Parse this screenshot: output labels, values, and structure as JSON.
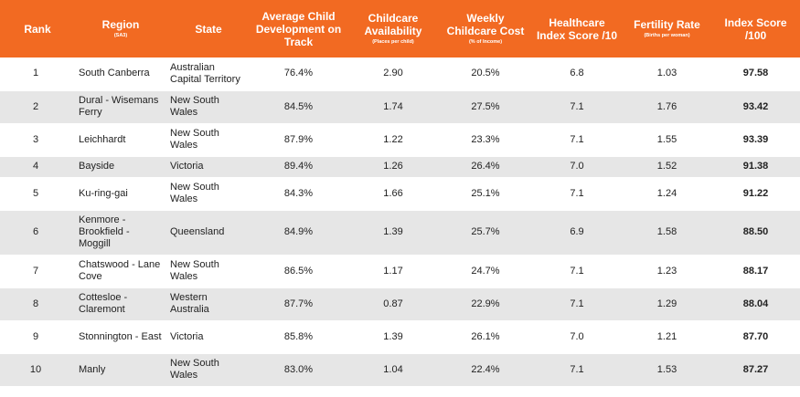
{
  "headers": {
    "rank": "Rank",
    "region": "Region",
    "region_sub": "(SA3)",
    "state": "State",
    "dev": "Average Child Development on Track",
    "avail": "Childcare Availability",
    "avail_sub": "(Places per child)",
    "cost": "Weekly Childcare Cost",
    "cost_sub": "(% of Income)",
    "health": "Healthcare Index Score /10",
    "fert": "Fertility Rate",
    "fert_sub": "(Births per woman)",
    "index": "Index Score /100"
  },
  "rows": [
    {
      "rank": "1",
      "region": "South Canberra",
      "state": "Australian Capital Territory",
      "dev": "76.4%",
      "avail": "2.90",
      "cost": "20.5%",
      "health": "6.8",
      "fert": "1.03",
      "index": "97.58"
    },
    {
      "rank": "2",
      "region": "Dural - Wisemans Ferry",
      "state": "New South Wales",
      "dev": "84.5%",
      "avail": "1.74",
      "cost": "27.5%",
      "health": "7.1",
      "fert": "1.76",
      "index": "93.42"
    },
    {
      "rank": "3",
      "region": "Leichhardt",
      "state": "New South Wales",
      "dev": "87.9%",
      "avail": "1.22",
      "cost": "23.3%",
      "health": "7.1",
      "fert": "1.55",
      "index": "93.39"
    },
    {
      "rank": "4",
      "region": "Bayside",
      "state": "Victoria",
      "dev": "89.4%",
      "avail": "1.26",
      "cost": "26.4%",
      "health": "7.0",
      "fert": "1.52",
      "index": "91.38"
    },
    {
      "rank": "5",
      "region": "Ku-ring-gai",
      "state": "New South Wales",
      "dev": "84.3%",
      "avail": "1.66",
      "cost": "25.1%",
      "health": "7.1",
      "fert": "1.24",
      "index": "91.22"
    },
    {
      "rank": "6",
      "region": "Kenmore - Brookfield - Moggill",
      "state": "Queensland",
      "dev": "84.9%",
      "avail": "1.39",
      "cost": "25.7%",
      "health": "6.9",
      "fert": "1.58",
      "index": "88.50"
    },
    {
      "rank": "7",
      "region": "Chatswood - Lane Cove",
      "state": "New South Wales",
      "dev": "86.5%",
      "avail": "1.17",
      "cost": "24.7%",
      "health": "7.1",
      "fert": "1.23",
      "index": "88.17"
    },
    {
      "rank": "8",
      "region": "Cottesloe - Claremont",
      "state": "Western Australia",
      "dev": "87.7%",
      "avail": "0.87",
      "cost": "22.9%",
      "health": "7.1",
      "fert": "1.29",
      "index": "88.04"
    },
    {
      "rank": "9",
      "region": "Stonnington - East",
      "state": "Victoria",
      "dev": "85.8%",
      "avail": "1.39",
      "cost": "26.1%",
      "health": "7.0",
      "fert": "1.21",
      "index": "87.70"
    },
    {
      "rank": "10",
      "region": "Manly",
      "state": "New South Wales",
      "dev": "83.0%",
      "avail": "1.04",
      "cost": "22.4%",
      "health": "7.1",
      "fert": "1.53",
      "index": "87.27"
    }
  ]
}
